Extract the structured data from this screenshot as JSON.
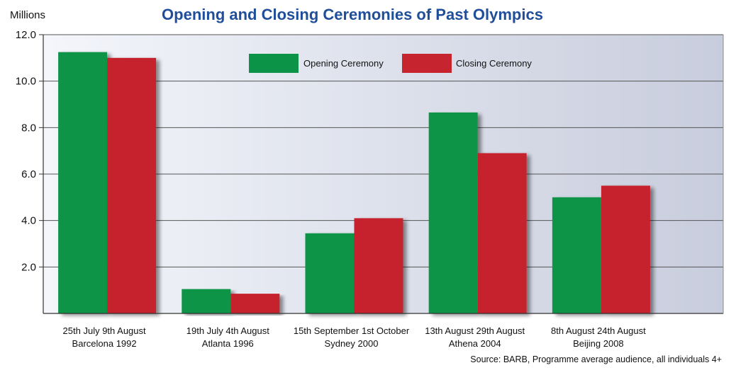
{
  "chart_data": {
    "type": "bar",
    "title": "Opening and Closing Ceremonies of Past Olympics",
    "ylabel": "Millions",
    "ylim": [
      0,
      12
    ],
    "yticks": [
      "2.0",
      "4.0",
      "6.0",
      "8.0",
      "10.0",
      "12.0"
    ],
    "ytick_values": [
      2,
      4,
      6,
      8,
      10,
      12
    ],
    "grid": true,
    "legend_position": "top-center",
    "categories": [
      {
        "line1": "25th July  9th August",
        "line2": "Barcelona 1992"
      },
      {
        "line1": "19th July  4th August",
        "line2": "Atlanta 1996"
      },
      {
        "line1": "15th September 1st October",
        "line2": "Sydney 2000"
      },
      {
        "line1": "13th August 29th August",
        "line2": "Athena 2004"
      },
      {
        "line1": "8th August 24th August",
        "line2": "Beijing 2008"
      }
    ],
    "series": [
      {
        "name": "Opening Ceremony",
        "color": "#0b9447",
        "values": [
          11.25,
          1.05,
          3.45,
          8.65,
          5.0
        ]
      },
      {
        "name": "Closing Ceremony",
        "color": "#c6242e",
        "values": [
          11.0,
          0.85,
          4.1,
          6.9,
          5.5
        ]
      }
    ],
    "source": "Source:  BARB, Programme average audience, all individuals 4+"
  }
}
